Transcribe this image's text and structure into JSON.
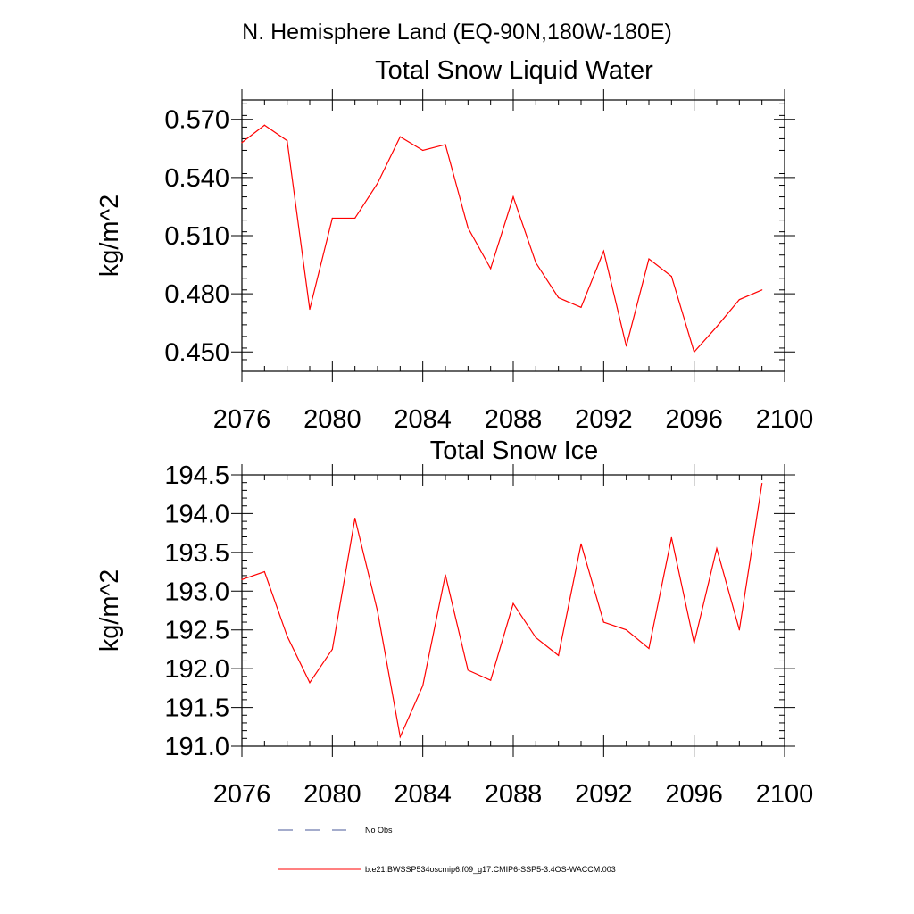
{
  "figure_title": "N. Hemisphere Land (EQ-90N,180W-180E)",
  "colors": {
    "model_line": "#ff0000",
    "obs_line": "#4a5a9a",
    "axis": "#000000"
  },
  "chart_data": [
    {
      "type": "line",
      "title": "Total Snow Liquid Water",
      "xlabel": "",
      "ylabel": "kg/m^2",
      "xlim": [
        2076,
        2100
      ],
      "ylim": [
        0.44,
        0.58
      ],
      "xticks": [
        2076,
        2080,
        2084,
        2088,
        2092,
        2096,
        2100
      ],
      "xtick_labels": [
        "2076",
        "2080",
        "2084",
        "2088",
        "2092",
        "2096",
        "2100"
      ],
      "yticks": [
        0.45,
        0.48,
        0.51,
        0.54,
        0.57
      ],
      "ytick_labels": [
        "0.450",
        "0.480",
        "0.510",
        "0.540",
        "0.570"
      ],
      "x_minor_step": 1,
      "y_minor_step": 0.006,
      "series": [
        {
          "name": "b.e21.BWSSP534oscmip6.f09_g17.CMIP6-SSP5-3.4OS-WACCM.003",
          "x": [
            2076,
            2077,
            2078,
            2079,
            2080,
            2081,
            2082,
            2083,
            2084,
            2085,
            2086,
            2087,
            2088,
            2089,
            2090,
            2091,
            2092,
            2093,
            2094,
            2095,
            2096,
            2097,
            2098,
            2099
          ],
          "values": [
            0.558,
            0.567,
            0.559,
            0.472,
            0.519,
            0.519,
            0.537,
            0.561,
            0.554,
            0.557,
            0.514,
            0.493,
            0.53,
            0.496,
            0.478,
            0.473,
            0.502,
            0.453,
            0.498,
            0.489,
            0.45,
            0.463,
            0.477,
            0.482
          ]
        }
      ]
    },
    {
      "type": "line",
      "title": "Total Snow Ice",
      "xlabel": "",
      "ylabel": "kg/m^2",
      "xlim": [
        2076,
        2100
      ],
      "ylim": [
        191.0,
        194.5
      ],
      "xticks": [
        2076,
        2080,
        2084,
        2088,
        2092,
        2096,
        2100
      ],
      "xtick_labels": [
        "2076",
        "2080",
        "2084",
        "2088",
        "2092",
        "2096",
        "2100"
      ],
      "yticks": [
        191.0,
        191.5,
        192.0,
        192.5,
        193.0,
        193.5,
        194.0,
        194.5
      ],
      "ytick_labels": [
        "191.0",
        "191.5",
        "192.0",
        "192.5",
        "193.0",
        "193.5",
        "194.0",
        "194.5"
      ],
      "x_minor_step": 1,
      "y_minor_step": 0.1,
      "series": [
        {
          "name": "b.e21.BWSSP534oscmip6.f09_g17.CMIP6-SSP5-3.4OS-WACCM.003",
          "x": [
            2076,
            2077,
            2078,
            2079,
            2080,
            2081,
            2082,
            2083,
            2084,
            2085,
            2086,
            2087,
            2088,
            2089,
            2090,
            2091,
            2092,
            2093,
            2094,
            2095,
            2096,
            2097,
            2098,
            2099
          ],
          "values": [
            193.15,
            193.25,
            192.42,
            191.82,
            192.25,
            193.94,
            192.74,
            191.12,
            191.78,
            193.21,
            191.98,
            191.85,
            192.84,
            192.4,
            192.17,
            193.61,
            192.6,
            192.5,
            192.26,
            193.69,
            192.33,
            193.55,
            192.5,
            194.39
          ]
        }
      ]
    }
  ],
  "legend": [
    {
      "label": "No Obs",
      "style": "dashed",
      "color": "#4a5a9a"
    },
    {
      "label": "b.e21.BWSSP534oscmip6.f09_g17.CMIP6-SSP5-3.4OS-WACCM.003",
      "style": "solid",
      "color": "#ff0000"
    }
  ]
}
